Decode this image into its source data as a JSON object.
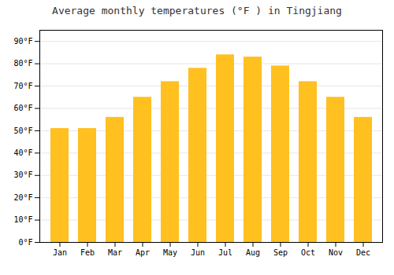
{
  "chart_data": {
    "type": "bar",
    "title": "Average monthly temperatures (°F ) in Tingjiang",
    "categories": [
      "Jan",
      "Feb",
      "Mar",
      "Apr",
      "May",
      "Jun",
      "Jul",
      "Aug",
      "Sep",
      "Oct",
      "Nov",
      "Dec"
    ],
    "values": [
      51,
      51,
      56,
      65,
      72,
      78,
      84,
      83,
      79,
      72,
      65,
      56
    ],
    "color": "#FFC020",
    "ylim": [
      0,
      95
    ],
    "yticks": [
      {
        "value": 0,
        "label": "0°F"
      },
      {
        "value": 10,
        "label": "10°F"
      },
      {
        "value": 20,
        "label": "20°F"
      },
      {
        "value": 30,
        "label": "30°F"
      },
      {
        "value": 40,
        "label": "40°F"
      },
      {
        "value": 50,
        "label": "50°F"
      },
      {
        "value": 60,
        "label": "60°F"
      },
      {
        "value": 70,
        "label": "70°F"
      },
      {
        "value": 80,
        "label": "80°F"
      },
      {
        "value": 90,
        "label": "90°F"
      }
    ],
    "grid": true
  }
}
